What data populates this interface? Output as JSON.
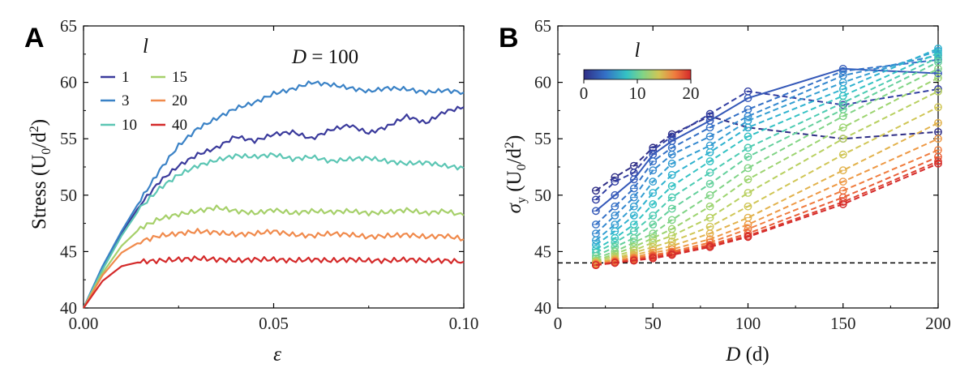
{
  "chart_data": [
    {
      "panel": "A",
      "type": "line",
      "title": "",
      "annotation": "D = 100",
      "xlabel": "ε",
      "ylabel": "Stress (U₀/d²)",
      "xlim": [
        0,
        0.1
      ],
      "ylim": [
        40,
        65
      ],
      "xticks": [
        "0.00",
        "0.05",
        "0.10"
      ],
      "yticks": [
        "40",
        "45",
        "50",
        "55",
        "60",
        "65"
      ],
      "legend_title": "l",
      "x": [
        0,
        0.005,
        0.01,
        0.015,
        0.02,
        0.025,
        0.03,
        0.035,
        0.04,
        0.045,
        0.05,
        0.055,
        0.06,
        0.065,
        0.07,
        0.075,
        0.08,
        0.085,
        0.09,
        0.095,
        0.1
      ],
      "series": [
        {
          "name": "1",
          "color": "#3b3b9c",
          "values": [
            40,
            43.6,
            46.6,
            49.2,
            51.2,
            52.6,
            53.6,
            54.2,
            55.2,
            54.8,
            55.4,
            55.6,
            55.0,
            55.8,
            56.2,
            55.5,
            56.1,
            57.0,
            56.4,
            57.4,
            57.8
          ]
        },
        {
          "name": "3",
          "color": "#3a82c6",
          "values": [
            40,
            43.7,
            46.8,
            49.6,
            52.2,
            54.4,
            55.9,
            56.8,
            57.7,
            58.2,
            59.0,
            59.4,
            60.0,
            59.8,
            59.5,
            59.2,
            59.5,
            59.4,
            59.1,
            59.3,
            59.1
          ]
        },
        {
          "name": "10",
          "color": "#5cc6b4",
          "values": [
            40,
            43.4,
            46.4,
            48.9,
            50.6,
            51.8,
            52.6,
            53.1,
            53.5,
            53.4,
            53.6,
            53.2,
            53.4,
            53.0,
            53.2,
            53.3,
            53.0,
            52.8,
            52.9,
            52.6,
            52.4
          ]
        },
        {
          "name": "15",
          "color": "#a6d06a",
          "values": [
            40,
            43.1,
            45.5,
            47.1,
            47.9,
            48.3,
            48.6,
            48.9,
            48.6,
            48.4,
            48.7,
            48.4,
            48.6,
            48.5,
            48.6,
            48.4,
            48.5,
            48.7,
            48.4,
            48.6,
            48.2
          ]
        },
        {
          "name": "20",
          "color": "#f08a4c",
          "values": [
            40,
            42.9,
            44.9,
            45.9,
            46.4,
            46.6,
            46.8,
            46.7,
            46.5,
            46.6,
            46.8,
            46.5,
            46.4,
            46.6,
            46.5,
            46.3,
            46.4,
            46.5,
            46.3,
            46.4,
            46.1
          ]
        },
        {
          "name": "40",
          "color": "#d42a2a",
          "values": [
            40,
            42.4,
            43.7,
            44.1,
            44.2,
            44.3,
            44.4,
            44.3,
            44.2,
            44.3,
            44.3,
            44.2,
            44.3,
            44.2,
            44.3,
            44.2,
            44.2,
            44.3,
            44.2,
            44.2,
            44.1
          ]
        }
      ]
    },
    {
      "panel": "B",
      "type": "line",
      "title": "",
      "xlabel": "D (d)",
      "ylabel": "σy (U₀/d²)",
      "xlim": [
        0,
        200
      ],
      "ylim": [
        40,
        65
      ],
      "xticks": [
        "0",
        "50",
        "100",
        "150",
        "200"
      ],
      "yticks": [
        "40",
        "45",
        "50",
        "55",
        "60",
        "65"
      ],
      "reference_line": 44,
      "colorbar": {
        "title": "l",
        "min": 0,
        "max": 20,
        "ticks": [
          "0",
          "10",
          "20"
        ]
      },
      "x": [
        20,
        30,
        40,
        50,
        60,
        80,
        100,
        150,
        200
      ],
      "series": [
        {
          "name": "l=1",
          "color": "#2f2e86",
          "values": [
            50.4,
            51.6,
            52.6,
            54.2,
            55.4,
            57.0,
            56.0,
            55.0,
            55.6
          ]
        },
        {
          "name": "l=2",
          "color": "#323fa2",
          "values": [
            49.6,
            51.2,
            52.0,
            54.0,
            55.2,
            57.2,
            59.2,
            58.0,
            59.4
          ]
        },
        {
          "name": "l=3",
          "color": "#3458b8",
          "values": [
            48.6,
            50.0,
            51.4,
            53.6,
            54.8,
            56.6,
            58.6,
            61.2,
            60.8
          ]
        },
        {
          "name": "l=4",
          "color": "#3470c6",
          "values": [
            47.4,
            49.0,
            50.6,
            53.0,
            54.2,
            56.0,
            57.6,
            61.0,
            62.0
          ]
        },
        {
          "name": "l=5",
          "color": "#3488cf",
          "values": [
            46.6,
            48.2,
            49.8,
            52.2,
            53.6,
            55.2,
            57.0,
            60.6,
            62.4
          ]
        },
        {
          "name": "l=6",
          "color": "#349ed2",
          "values": [
            46.0,
            47.4,
            49.0,
            51.2,
            52.8,
            54.4,
            56.6,
            60.0,
            62.8
          ]
        },
        {
          "name": "l=7",
          "color": "#2fb2cf",
          "values": [
            45.6,
            46.8,
            48.2,
            50.2,
            51.8,
            53.8,
            56.0,
            59.4,
            63.0
          ]
        },
        {
          "name": "l=8",
          "color": "#34c2c4",
          "values": [
            45.2,
            46.2,
            47.4,
            49.2,
            50.8,
            53.0,
            55.2,
            58.8,
            62.6
          ]
        },
        {
          "name": "l=9",
          "color": "#4ccbb2",
          "values": [
            44.9,
            45.8,
            46.8,
            48.2,
            49.8,
            52.0,
            54.2,
            58.2,
            62.2
          ]
        },
        {
          "name": "l=10",
          "color": "#64d09c",
          "values": [
            44.6,
            45.4,
            46.2,
            47.4,
            48.8,
            51.0,
            53.4,
            57.6,
            61.8
          ]
        },
        {
          "name": "l=11",
          "color": "#80d486",
          "values": [
            44.4,
            45.0,
            45.8,
            46.6,
            47.8,
            50.0,
            52.4,
            57.0,
            61.2
          ]
        },
        {
          "name": "l=12",
          "color": "#9cd470",
          "values": [
            44.2,
            44.8,
            45.4,
            46.2,
            47.0,
            49.0,
            51.4,
            56.0,
            60.4
          ]
        },
        {
          "name": "l=13",
          "color": "#b8d060",
          "values": [
            44.1,
            44.6,
            45.1,
            45.8,
            46.4,
            48.0,
            50.2,
            55.0,
            59.2
          ]
        },
        {
          "name": "l=14",
          "color": "#d0c656",
          "values": [
            44.0,
            44.4,
            44.9,
            45.4,
            45.9,
            47.2,
            49.0,
            53.6,
            57.8
          ]
        },
        {
          "name": "l=15",
          "color": "#e2b24c",
          "values": [
            44.0,
            44.3,
            44.7,
            45.1,
            45.5,
            46.6,
            48.0,
            52.2,
            56.4
          ]
        },
        {
          "name": "l=16",
          "color": "#ee9844",
          "values": [
            43.9,
            44.2,
            44.5,
            44.9,
            45.2,
            46.1,
            47.4,
            51.2,
            55.0
          ]
        },
        {
          "name": "l=17",
          "color": "#f07c3e",
          "values": [
            43.9,
            44.1,
            44.4,
            44.7,
            45.0,
            45.8,
            47.0,
            50.4,
            54.0
          ]
        },
        {
          "name": "l=18",
          "color": "#ea5e36",
          "values": [
            43.8,
            44.1,
            44.3,
            44.6,
            44.9,
            45.6,
            46.6,
            49.8,
            53.4
          ]
        },
        {
          "name": "l=19",
          "color": "#de4030",
          "values": [
            43.8,
            44.0,
            44.2,
            44.5,
            44.8,
            45.5,
            46.4,
            49.4,
            53.0
          ]
        },
        {
          "name": "l=20",
          "color": "#d42a2a",
          "values": [
            43.8,
            44.0,
            44.2,
            44.4,
            44.7,
            45.4,
            46.3,
            49.2,
            52.8
          ]
        }
      ]
    }
  ],
  "labels": {
    "panel_a": "A",
    "panel_b": "B",
    "a_annotation_var": "D",
    "a_annotation_rest": " = 100",
    "a_ylabel_main": "Stress (U",
    "a_ylabel_sub": "0",
    "a_ylabel_mid": "/d",
    "a_ylabel_sup": "2",
    "a_ylabel_end": ")",
    "a_xlabel": "ε",
    "b_ylabel_sigma": "σ",
    "b_ylabel_sub": "y",
    "b_ylabel_rest": " (U",
    "b_ylabel_sub0": "0",
    "b_ylabel_mid": "/d",
    "b_ylabel_sup": "2",
    "b_ylabel_end": ")",
    "b_xlabel_var": "D",
    "b_xlabel_rest": " (d)",
    "legend_title": "l",
    "colorbar_title": "l"
  }
}
